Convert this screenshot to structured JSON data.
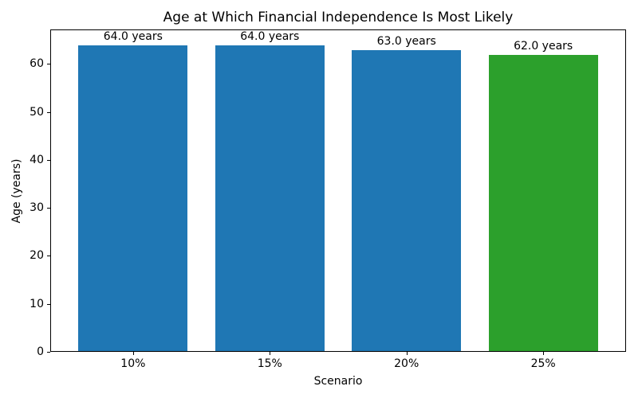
{
  "chart_data": {
    "type": "bar",
    "title": "Age at Which Financial Independence Is Most Likely",
    "xlabel": "Scenario",
    "ylabel": "Age (years)",
    "categories": [
      "10%",
      "15%",
      "20%",
      "25%"
    ],
    "values": [
      64.0,
      64.0,
      63.0,
      62.0
    ],
    "bar_labels": [
      "64.0 years",
      "64.0 years",
      "63.0 years",
      "62.0 years"
    ],
    "bar_colors": [
      "#1f77b4",
      "#1f77b4",
      "#1f77b4",
      "#2ca02c"
    ],
    "ylim": [
      0,
      67.2
    ],
    "yticks": [
      0,
      10,
      20,
      30,
      40,
      50,
      60
    ],
    "grid": false,
    "legend_position": "none",
    "spine_color": "#000000",
    "background_color": "#ffffff"
  }
}
